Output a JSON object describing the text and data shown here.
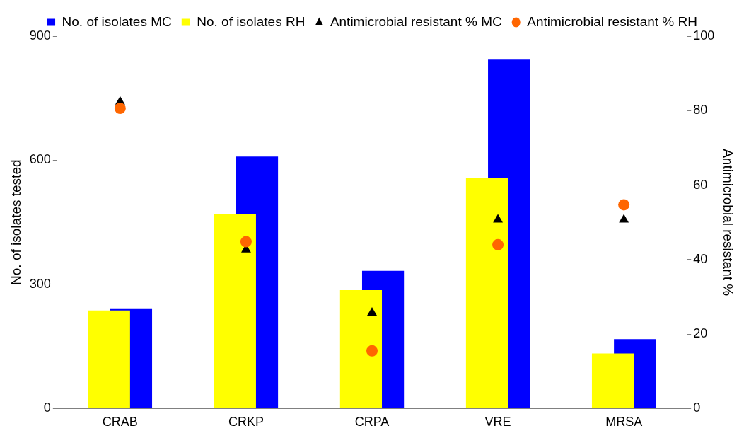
{
  "chart_data": {
    "type": "bar",
    "categories": [
      "CRAB",
      "CRKP",
      "CRPA",
      "VRE",
      "MRSA"
    ],
    "series": [
      {
        "name": "No. of isolates MC",
        "color": "#0000ff",
        "values": [
          242,
          609,
          333,
          843,
          168
        ]
      },
      {
        "name": "No. of isolates RH",
        "color": "#ffff00",
        "values": [
          237,
          469,
          286,
          557,
          133
        ]
      },
      {
        "name": "Antimicrobial resistant % MC",
        "type": "scatter",
        "axis": "y2",
        "marker": "triangle",
        "color": "#000000",
        "values": [
          82.4,
          42.7,
          25.7,
          50.7,
          50.7
        ]
      },
      {
        "name": "Antimicrobial resistant % RH",
        "type": "scatter",
        "axis": "y2",
        "marker": "circle",
        "color": "#ff6600",
        "values": [
          80.6,
          44.8,
          15.5,
          44.0,
          54.7
        ]
      }
    ],
    "ylabel": "No. of isolates tested",
    "y2label": "Antimicrobial resistant %",
    "ylim": [
      0,
      900
    ],
    "yticks": [
      0,
      300,
      600,
      900
    ],
    "y2lim": [
      0,
      100
    ],
    "y2ticks": [
      0,
      20,
      40,
      60,
      80,
      100
    ],
    "grid": false,
    "legend": "top"
  }
}
